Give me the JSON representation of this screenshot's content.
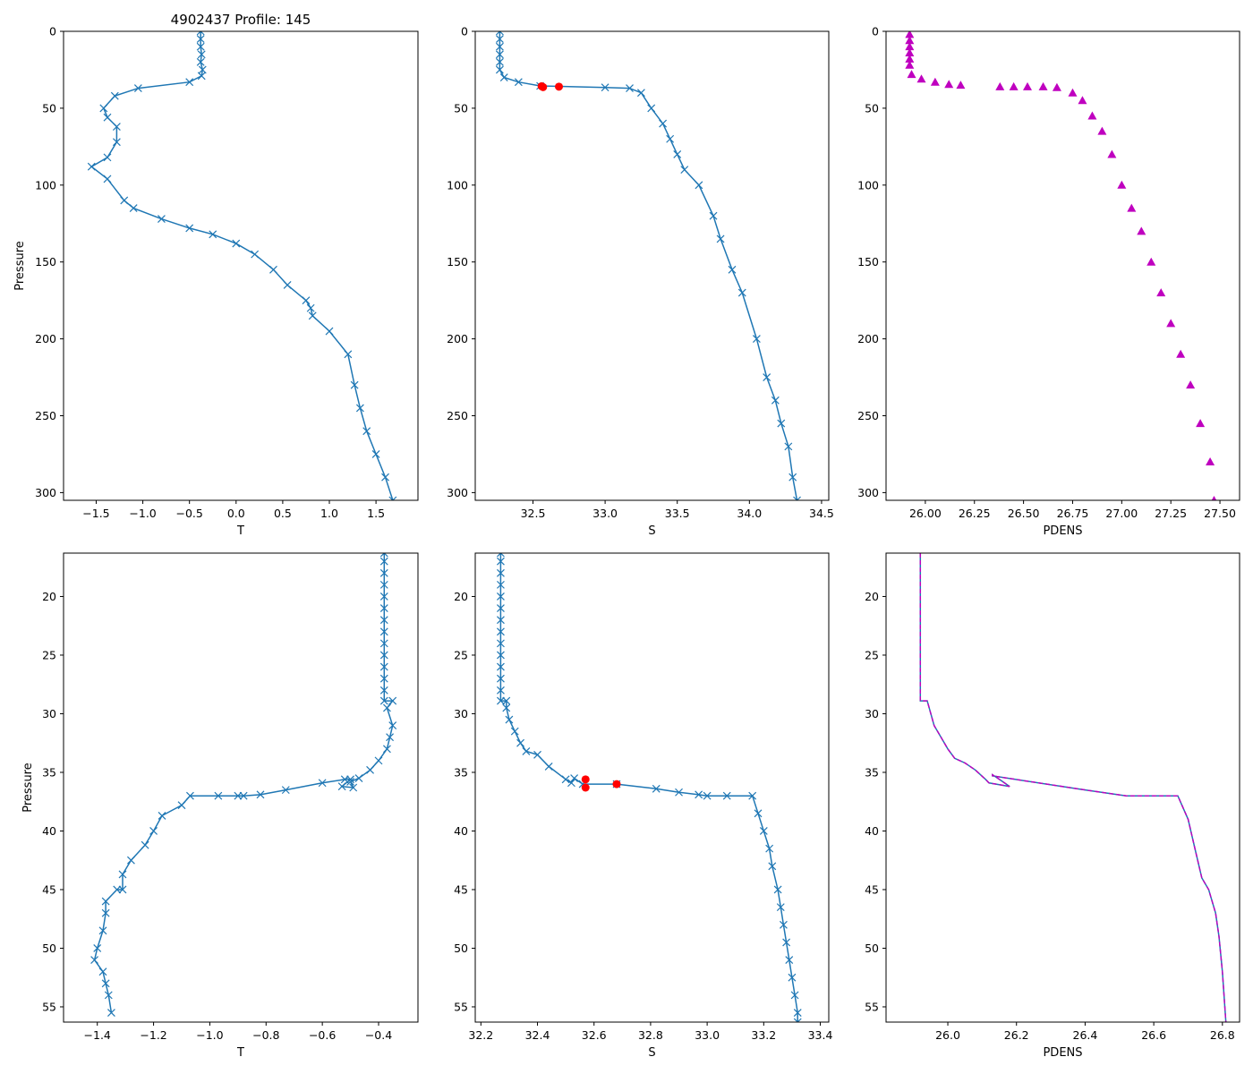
{
  "figure_title": "4902437 Profile: 145",
  "chart_data": [
    {
      "type": "line",
      "panel": "top-left",
      "xlabel": "T",
      "ylabel": "Pressure",
      "xlim": [
        -1.85,
        1.95
      ],
      "ylim": [
        305,
        0
      ],
      "xticks": [
        -1.5,
        -1.0,
        -0.5,
        0.0,
        0.5,
        1.0,
        1.5
      ],
      "xtick_labels": [
        "−1.5",
        "−1.0",
        "−0.5",
        "0.0",
        "0.5",
        "1.0",
        "1.5"
      ],
      "yticks": [
        0,
        50,
        100,
        150,
        200,
        250,
        300
      ],
      "ytick_labels": [
        "0",
        "50",
        "100",
        "150",
        "200",
        "250",
        "300"
      ],
      "series": [
        {
          "name": "T",
          "color": "#1f77b4",
          "marker": "x",
          "x": [
            -0.38,
            -0.38,
            -0.38,
            -0.37,
            -0.38,
            -0.36,
            -0.37,
            -0.5,
            -1.05,
            -1.3,
            -1.42,
            -1.38,
            -1.28,
            -1.28,
            -1.38,
            -1.55,
            -1.38,
            -1.2,
            -1.1,
            -0.8,
            -0.5,
            -0.25,
            0.0,
            0.2,
            0.4,
            0.55,
            0.75,
            0.8,
            0.82,
            1.0,
            1.2,
            1.27,
            1.33,
            1.4,
            1.5,
            1.6,
            1.68
          ],
          "y": [
            0,
            5,
            10,
            15,
            20,
            25,
            29,
            33,
            37,
            42,
            50,
            56,
            62,
            72,
            82,
            88,
            96,
            110,
            115,
            122,
            128,
            132,
            138,
            145,
            155,
            165,
            175,
            180,
            185,
            195,
            210,
            230,
            245,
            260,
            275,
            290,
            305
          ]
        }
      ]
    },
    {
      "type": "line",
      "panel": "top-middle",
      "xlabel": "S",
      "ylabel": "",
      "xlim": [
        32.1,
        34.55
      ],
      "ylim": [
        305,
        0
      ],
      "xticks": [
        32.5,
        33.0,
        33.5,
        34.0,
        34.5
      ],
      "xtick_labels": [
        "32.5",
        "33.0",
        "33.5",
        "34.0",
        "34.5"
      ],
      "yticks": [
        0,
        50,
        100,
        150,
        200,
        250,
        300
      ],
      "ytick_labels": [
        "0",
        "50",
        "100",
        "150",
        "200",
        "250",
        "300"
      ],
      "series": [
        {
          "name": "S",
          "color": "#1f77b4",
          "marker": "x",
          "x": [
            32.27,
            32.27,
            32.27,
            32.27,
            32.27,
            32.27,
            32.3,
            32.4,
            32.55,
            33.0,
            33.17,
            33.25,
            33.32,
            33.4,
            33.45,
            33.5,
            33.55,
            33.65,
            33.75,
            33.8,
            33.88,
            33.95,
            34.05,
            34.12,
            34.18,
            34.22,
            34.27,
            34.3,
            34.33
          ],
          "y": [
            0,
            5,
            10,
            15,
            20,
            25,
            30,
            33,
            35.5,
            36.5,
            37,
            40,
            50,
            60,
            70,
            80,
            90,
            100,
            120,
            135,
            155,
            170,
            200,
            225,
            240,
            255,
            270,
            290,
            305
          ]
        },
        {
          "name": "flagged",
          "color": "#ff0000",
          "marker": "o",
          "x": [
            32.56,
            32.57,
            32.68
          ],
          "y": [
            35.7,
            36.3,
            36.0
          ]
        }
      ]
    },
    {
      "type": "scatter",
      "panel": "top-right",
      "xlabel": "PDENS",
      "ylabel": "",
      "xlim": [
        25.8,
        27.6
      ],
      "ylim": [
        305,
        0
      ],
      "xticks": [
        26.0,
        26.25,
        26.5,
        26.75,
        27.0,
        27.25,
        27.5
      ],
      "xtick_labels": [
        "26.00",
        "26.25",
        "26.50",
        "26.75",
        "27.00",
        "27.25",
        "27.50"
      ],
      "yticks": [
        0,
        50,
        100,
        150,
        200,
        250,
        300
      ],
      "ytick_labels": [
        "0",
        "50",
        "100",
        "150",
        "200",
        "250",
        "300"
      ],
      "series": [
        {
          "name": "PDENS",
          "color": "#bf00bf",
          "marker": "^",
          "x": [
            25.92,
            25.92,
            25.92,
            25.92,
            25.92,
            25.92,
            25.93,
            25.98,
            26.05,
            26.12,
            26.18,
            26.38,
            26.45,
            26.52,
            26.6,
            26.67,
            26.75,
            26.8,
            26.85,
            26.9,
            26.95,
            27.0,
            27.05,
            27.1,
            27.15,
            27.2,
            27.25,
            27.3,
            27.35,
            27.4,
            27.45,
            27.47
          ],
          "y": [
            2,
            6,
            10,
            14,
            18,
            22,
            28,
            31,
            33,
            34.5,
            35,
            36,
            36,
            36,
            36,
            36.5,
            40,
            45,
            55,
            65,
            80,
            100,
            115,
            130,
            150,
            170,
            190,
            210,
            230,
            255,
            280,
            305
          ]
        }
      ]
    },
    {
      "type": "line",
      "panel": "bottom-left",
      "xlabel": "T",
      "ylabel": "Pressure",
      "xlim": [
        -1.52,
        -0.26
      ],
      "ylim": [
        56.3,
        16.3
      ],
      "xticks": [
        -1.4,
        -1.2,
        -1.0,
        -0.8,
        -0.6,
        -0.4
      ],
      "xtick_labels": [
        "−1.4",
        "−1.2",
        "−1.0",
        "−0.8",
        "−0.6",
        "−0.4"
      ],
      "yticks": [
        20,
        25,
        30,
        35,
        40,
        45,
        50,
        55
      ],
      "ytick_labels": [
        "20",
        "25",
        "30",
        "35",
        "40",
        "45",
        "50",
        "55"
      ],
      "series": [
        {
          "name": "T",
          "color": "#1f77b4",
          "marker": "x",
          "x": [
            -0.38,
            -0.38,
            -0.38,
            -0.38,
            -0.38,
            -0.38,
            -0.38,
            -0.38,
            -0.38,
            -0.38,
            -0.38,
            -0.38,
            -0.38,
            -0.38,
            -0.35,
            -0.37,
            -0.35,
            -0.36,
            -0.37,
            -0.4,
            -0.43,
            -0.47,
            -0.5,
            -0.49,
            -0.53,
            -0.5,
            -0.52,
            -0.6,
            -0.73,
            -0.82,
            -0.88,
            -0.9,
            -0.97,
            -1.07,
            -1.1,
            -1.17,
            -1.2,
            -1.23,
            -1.28,
            -1.31,
            -1.31,
            -1.33,
            -1.37,
            -1.37,
            -1.38,
            -1.4,
            -1.41,
            -1.38,
            -1.37,
            -1.36,
            -1.35
          ],
          "y": [
            16.3,
            17,
            18,
            19,
            20,
            21,
            22,
            23,
            24,
            25,
            26,
            27,
            28,
            28.9,
            28.9,
            29.5,
            31,
            32,
            33,
            34,
            34.8,
            35.5,
            35.8,
            36.3,
            36.2,
            35.6,
            35.6,
            35.9,
            36.5,
            36.9,
            37,
            37,
            37,
            37,
            37.8,
            38.7,
            40,
            41.2,
            42.5,
            43.7,
            45,
            45,
            46,
            47,
            48.5,
            50,
            51,
            52,
            53,
            54,
            55.5
          ]
        }
      ]
    },
    {
      "type": "line",
      "panel": "bottom-middle",
      "xlabel": "S",
      "ylabel": "",
      "xlim": [
        32.18,
        33.43
      ],
      "ylim": [
        56.3,
        16.3
      ],
      "xticks": [
        32.2,
        32.4,
        32.6,
        32.8,
        33.0,
        33.2,
        33.4
      ],
      "xtick_labels": [
        "32.2",
        "32.4",
        "32.6",
        "32.8",
        "33.0",
        "33.2",
        "33.4"
      ],
      "yticks": [
        20,
        25,
        30,
        35,
        40,
        45,
        50,
        55
      ],
      "ytick_labels": [
        "20",
        "25",
        "30",
        "35",
        "40",
        "45",
        "50",
        "55"
      ],
      "series": [
        {
          "name": "S",
          "color": "#1f77b4",
          "marker": "x",
          "x": [
            32.27,
            32.27,
            32.27,
            32.27,
            32.27,
            32.27,
            32.27,
            32.27,
            32.27,
            32.27,
            32.27,
            32.27,
            32.27,
            32.27,
            32.29,
            32.29,
            32.3,
            32.32,
            32.34,
            32.36,
            32.4,
            32.44,
            32.5,
            32.52,
            32.53,
            32.56,
            32.68,
            32.82,
            32.9,
            32.97,
            33.0,
            33.07,
            33.16,
            33.18,
            33.2,
            33.22,
            33.23,
            33.25,
            33.26,
            33.27,
            33.28,
            33.29,
            33.3,
            33.31,
            33.32,
            33.32
          ],
          "y": [
            16.3,
            17,
            18,
            19,
            20,
            21,
            22,
            23,
            24,
            25,
            26,
            27,
            28,
            28.9,
            28.9,
            29.5,
            30.5,
            31.5,
            32.5,
            33.2,
            33.5,
            34.5,
            35.6,
            35.9,
            35.5,
            36.0,
            36.0,
            36.4,
            36.7,
            36.9,
            37,
            37,
            37,
            38.5,
            40,
            41.5,
            43,
            45,
            46.5,
            48,
            49.5,
            51,
            52.5,
            54,
            55.5,
            56.3
          ]
        },
        {
          "name": "flagged",
          "color": "#ff0000",
          "marker": "o",
          "x": [
            32.57,
            32.57,
            32.68
          ],
          "y": [
            35.6,
            36.3,
            36.0
          ]
        }
      ]
    },
    {
      "type": "line",
      "panel": "bottom-right",
      "xlabel": "PDENS",
      "ylabel": "",
      "xlim": [
        25.82,
        26.85
      ],
      "ylim": [
        56.3,
        16.3
      ],
      "xticks": [
        26.0,
        26.2,
        26.4,
        26.6,
        26.8
      ],
      "xtick_labels": [
        "26.0",
        "26.2",
        "26.4",
        "26.6",
        "26.8"
      ],
      "yticks": [
        20,
        25,
        30,
        35,
        40,
        45,
        50,
        55
      ],
      "ytick_labels": [
        "20",
        "25",
        "30",
        "35",
        "40",
        "45",
        "50",
        "55"
      ],
      "series": [
        {
          "name": "PDENS",
          "color": "#1f77b4",
          "marker": "none",
          "x": [
            25.92,
            25.92,
            25.92,
            25.94,
            25.96,
            25.98,
            26.0,
            26.02,
            26.05,
            26.08,
            26.11,
            26.12,
            26.18,
            26.15,
            26.13,
            26.13,
            26.4,
            26.52,
            26.67,
            26.7,
            26.72,
            26.74,
            26.76,
            26.78,
            26.79,
            26.8,
            26.81
          ],
          "y": [
            16.3,
            24,
            28.9,
            28.9,
            31,
            32,
            33,
            33.8,
            34.2,
            34.8,
            35.6,
            35.9,
            36.2,
            35.6,
            35.2,
            35.3,
            36.5,
            37,
            37,
            39,
            41.5,
            44,
            45,
            47,
            49,
            52,
            56.3
          ]
        },
        {
          "name": "PDENS (dashed)",
          "color": "#bf00bf",
          "marker": "none",
          "x": [
            25.92,
            25.92,
            25.92,
            25.94,
            25.96,
            25.98,
            26.0,
            26.02,
            26.05,
            26.08,
            26.11,
            26.12,
            26.18,
            26.15,
            26.13,
            26.13,
            26.4,
            26.52,
            26.67,
            26.7,
            26.72,
            26.74,
            26.76,
            26.78,
            26.79,
            26.8,
            26.81
          ],
          "y": [
            16.3,
            24,
            28.9,
            28.9,
            31,
            32,
            33,
            33.8,
            34.2,
            34.8,
            35.6,
            35.9,
            36.2,
            35.6,
            35.2,
            35.3,
            36.5,
            37,
            37,
            39,
            41.5,
            44,
            45,
            47,
            49,
            52,
            56.3
          ]
        }
      ]
    }
  ]
}
